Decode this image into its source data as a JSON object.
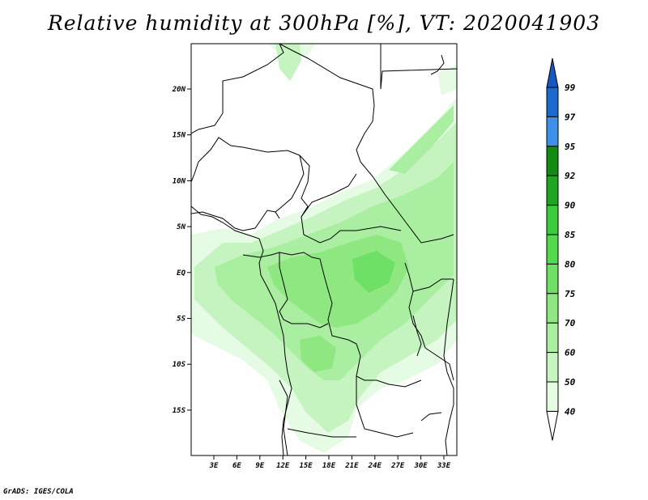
{
  "title": "Relative humidity at 300hPa [%], VT: 2020041903",
  "credit": "GrADS: IGES/COLA",
  "map": {
    "lat_ticks": [
      "20N",
      "15N",
      "10N",
      "5N",
      "EQ",
      "5S",
      "10S",
      "15S"
    ],
    "lon_ticks": [
      "3E",
      "6E",
      "9E",
      "12E",
      "15E",
      "18E",
      "21E",
      "24E",
      "27E",
      "30E",
      "33E"
    ]
  },
  "colorbar": {
    "levels": [
      "99",
      "97",
      "95",
      "92",
      "90",
      "85",
      "80",
      "75",
      "70",
      "60",
      "50",
      "40"
    ],
    "colors": [
      "#ffffff",
      "#e6fbe3",
      "#c6f4c0",
      "#aaeea1",
      "#8ee781",
      "#6fe066",
      "#52d94c",
      "#3ccb3c",
      "#1fa51f",
      "#138b13",
      "#3c90ea",
      "#1a6ad0",
      "#1458c0"
    ]
  }
}
